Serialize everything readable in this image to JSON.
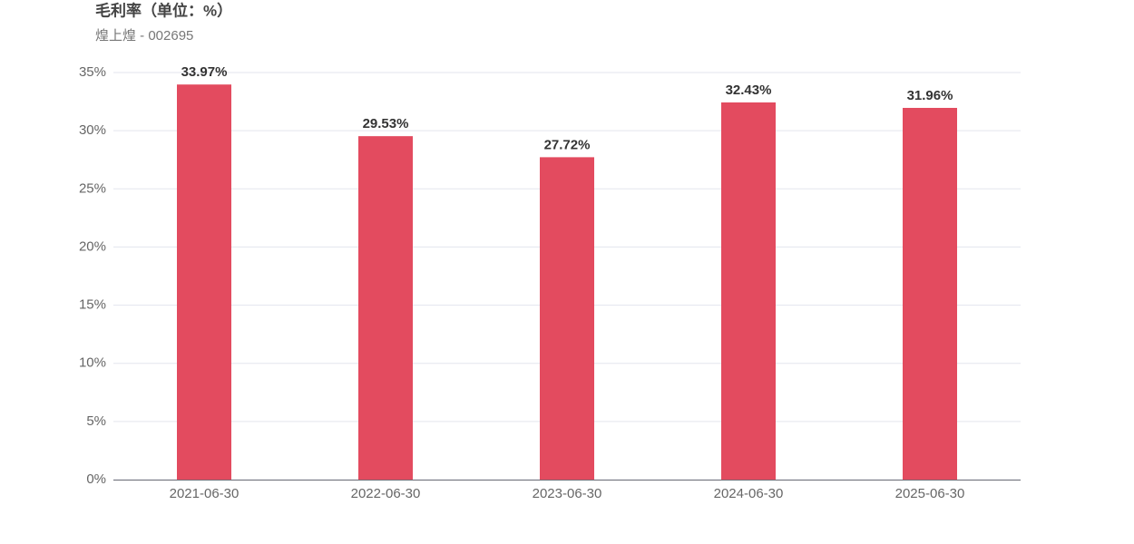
{
  "chart_data": {
    "type": "bar",
    "title": "毛利率（单位：%）",
    "subtitle": "煌上煌 - 002695",
    "categories": [
      "2021-06-30",
      "2022-06-30",
      "2023-06-30",
      "2024-06-30",
      "2025-06-30"
    ],
    "values": [
      33.97,
      29.53,
      27.72,
      32.43,
      31.96
    ],
    "value_labels": [
      "33.97%",
      "29.53%",
      "27.72%",
      "32.43%",
      "31.96%"
    ],
    "color": "#e34b5f",
    "ylim": [
      0,
      35
    ],
    "yticks": [
      {
        "value": 0,
        "label": "0%"
      },
      {
        "value": 5,
        "label": "5%"
      },
      {
        "value": 10,
        "label": "10%"
      },
      {
        "value": 15,
        "label": "15%"
      },
      {
        "value": 20,
        "label": "20%"
      },
      {
        "value": 25,
        "label": "25%"
      },
      {
        "value": 30,
        "label": "30%"
      },
      {
        "value": 35,
        "label": "35%"
      }
    ],
    "grid": true
  }
}
